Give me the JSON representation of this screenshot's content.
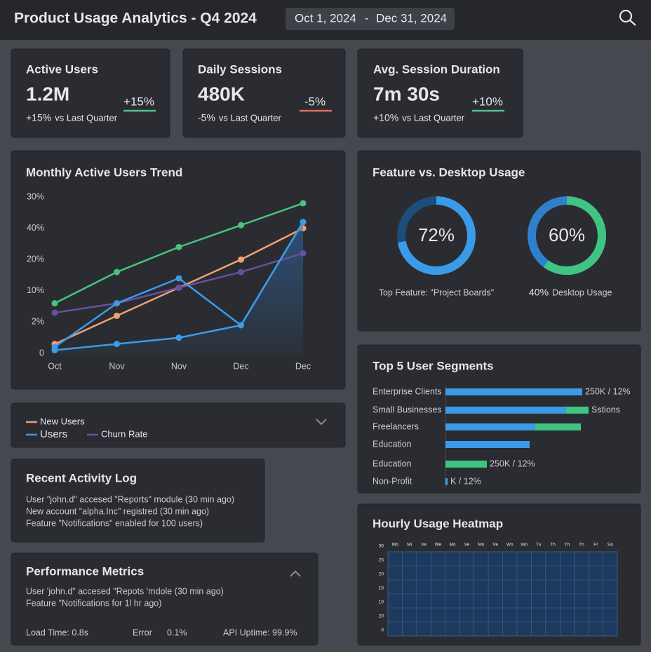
{
  "header": {
    "title": "Product Usage Analytics - Q4 2024",
    "date_start": "Oct 1, 2024",
    "date_separator": "-",
    "date_end": "Dec 31, 2024"
  },
  "kpis": [
    {
      "title": "Active Users",
      "value": "1.2M",
      "badge": "+15%",
      "delta": "+15%",
      "delta_note": "vs Last Quarter",
      "color": "#4cc38a"
    },
    {
      "title": "Daily Sessions",
      "value": "480K",
      "badge": "-5%",
      "delta": "-5%",
      "delta_note": "vs Last Quarter",
      "color": "#e06b5e"
    },
    {
      "title": "Avg. Session Duration",
      "value": "7m 30s",
      "badge": "+10%",
      "delta": "+10%",
      "delta_note": "vs Last Quarter",
      "color": "#4cc38a"
    }
  ],
  "chart_data": [
    {
      "type": "line",
      "title": "Monthly Active Users Trend",
      "categories": [
        "Oct",
        "Nov",
        "Nov",
        "Dec",
        "Dec"
      ],
      "ylim": [
        0,
        5
      ],
      "yticks": [
        {
          "value": 0,
          "label": "0"
        },
        {
          "value": 1,
          "label": "2%"
        },
        {
          "value": 2,
          "label": "10%"
        },
        {
          "value": 3,
          "label": "20%"
        },
        {
          "value": 4,
          "label": "40%"
        },
        {
          "value": 5,
          "label": "30%"
        }
      ],
      "series": [
        {
          "name": "New Users",
          "color": "#f0a070",
          "values": [
            0.3,
            1.2,
            2.1,
            3.0,
            4.0
          ]
        },
        {
          "name": "Users",
          "color": "#3b9be8",
          "values": [
            0.1,
            0.3,
            0.5,
            0.9,
            4.2
          ],
          "area": true
        },
        {
          "name": "Churn Rate",
          "color": "#6a4fa0",
          "values": [
            1.3,
            1.6,
            2.1,
            2.6,
            3.2
          ]
        },
        {
          "color": "#46c47f",
          "values": [
            1.6,
            2.6,
            3.4,
            4.1,
            4.8
          ]
        },
        {
          "color": "#3b9be8",
          "values": [
            0.2,
            1.6,
            2.4,
            0.9,
            4.2
          ]
        }
      ]
    },
    {
      "type": "donut",
      "title": "Feature vs. Desktop Usage",
      "rings": [
        {
          "value": 72,
          "value_label": "72%",
          "color": "#3b9be8",
          "rest_color": "#1d4d7a",
          "label_color": "#3b9be8",
          "caption": "Top Feature: \"Project Boards\""
        },
        {
          "value": 60,
          "value_label": "60%",
          "color": "#3fc482",
          "rest_color": "#2f80cc",
          "label_color": "#ffffff",
          "caption_highlight": "40%",
          "caption": "Desktop Usage"
        }
      ]
    },
    {
      "type": "bar",
      "title": "Top 5 User Segments",
      "orientation": "horizontal",
      "stacked": true,
      "categories": [
        "Enterprise Clients",
        "Small Businesses",
        "Freelancers",
        "Education",
        "Education",
        "Non-Profit"
      ],
      "xlim": [
        0,
        200
      ],
      "series": [
        {
          "color": "#3b9be8",
          "values": [
            195,
            172,
            128,
            120,
            0,
            3
          ]
        },
        {
          "color": "#3fc482",
          "values": [
            0,
            32,
            65,
            0,
            59,
            0
          ]
        }
      ],
      "bar_labels": [
        "250K / 12%",
        "Sstions",
        null,
        null,
        "250K / 12%",
        "K / 12%"
      ]
    },
    {
      "type": "heatmap",
      "title": "Hourly Usage Heatmap",
      "x_labels": [
        "Mo",
        "Mi",
        "Ve",
        "We",
        "Mo",
        "Ve",
        "Mo",
        "Ve",
        "Wo",
        "Wo",
        "Tu",
        "Th",
        "Th",
        "Th",
        "Fr",
        "Sa"
      ],
      "y_labels": [
        "30",
        "25",
        "20",
        "15",
        "10",
        "20",
        "0"
      ]
    }
  ],
  "activity": {
    "title": "Recent Activity Log",
    "lines": [
      "User \"john.d\" accesed \"Reports\" module (30 min ago)",
      "New account \"alpha.Inc\" registred (30 min ago)",
      "Feature \"Notifications\" enabled for 100 users)"
    ]
  },
  "performance": {
    "title": "Performance Metrics",
    "lines": [
      "User 'john.d\" accesed \"Repots 'mdole (30 min ago)",
      "Feature \"Notifications for 1l hr ago)"
    ],
    "metrics": [
      "Load Time: 0.8s",
      "Error",
      "0.1%",
      "API Uptime: 99.9%"
    ]
  }
}
